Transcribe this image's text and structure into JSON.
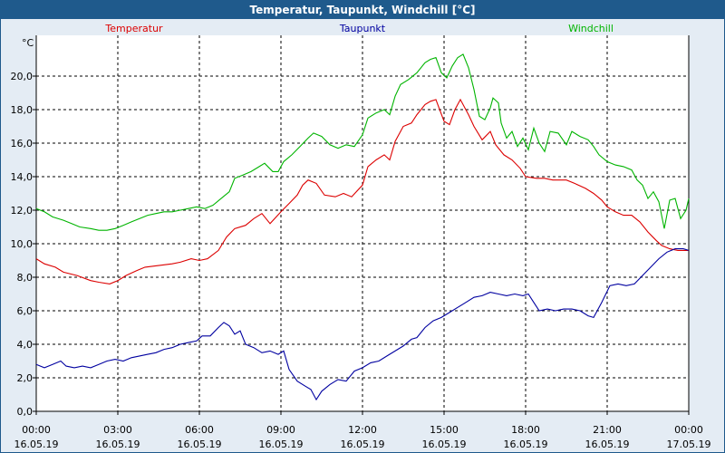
{
  "window": {
    "title": "Temperatur, Taupunkt, Windchill [°C]"
  },
  "chart_data": {
    "type": "line",
    "title": "Temperatur, Taupunkt, Windchill [°C]",
    "ylabel": "°C",
    "xlabel": "",
    "ylim": [
      0,
      22
    ],
    "xlim": [
      0,
      24
    ],
    "grid": true,
    "legend_placement": "top",
    "y_ticks": [
      "0,0",
      "2,0",
      "4,0",
      "6,0",
      "8,0",
      "10,0",
      "12,0",
      "14,0",
      "16,0",
      "18,0",
      "20,0"
    ],
    "x_ticks": [
      {
        "time": "00:00",
        "date": "16.05.19"
      },
      {
        "time": "03:00",
        "date": "16.05.19"
      },
      {
        "time": "06:00",
        "date": "16.05.19"
      },
      {
        "time": "09:00",
        "date": "16.05.19"
      },
      {
        "time": "12:00",
        "date": "16.05.19"
      },
      {
        "time": "15:00",
        "date": "16.05.19"
      },
      {
        "time": "18:00",
        "date": "16.05.19"
      },
      {
        "time": "21:00",
        "date": "16.05.19"
      },
      {
        "time": "00:00",
        "date": "17.05.19"
      }
    ],
    "series": [
      {
        "name": "Temperatur",
        "color": "#dc0000",
        "points": [
          [
            0.0,
            9.1
          ],
          [
            0.3,
            8.8
          ],
          [
            0.7,
            8.6
          ],
          [
            1.0,
            8.3
          ],
          [
            1.5,
            8.1
          ],
          [
            2.0,
            7.8
          ],
          [
            2.3,
            7.7
          ],
          [
            2.7,
            7.6
          ],
          [
            3.0,
            7.8
          ],
          [
            3.3,
            8.1
          ],
          [
            3.7,
            8.4
          ],
          [
            4.0,
            8.6
          ],
          [
            4.5,
            8.7
          ],
          [
            5.0,
            8.8
          ],
          [
            5.3,
            8.9
          ],
          [
            5.7,
            9.1
          ],
          [
            6.0,
            9.0
          ],
          [
            6.3,
            9.1
          ],
          [
            6.7,
            9.6
          ],
          [
            7.0,
            10.4
          ],
          [
            7.3,
            10.9
          ],
          [
            7.7,
            11.1
          ],
          [
            8.0,
            11.5
          ],
          [
            8.3,
            11.8
          ],
          [
            8.6,
            11.2
          ],
          [
            9.0,
            11.9
          ],
          [
            9.3,
            12.4
          ],
          [
            9.6,
            12.9
          ],
          [
            9.8,
            13.5
          ],
          [
            10.0,
            13.8
          ],
          [
            10.3,
            13.6
          ],
          [
            10.6,
            12.9
          ],
          [
            11.0,
            12.8
          ],
          [
            11.3,
            13.0
          ],
          [
            11.6,
            12.8
          ],
          [
            12.0,
            13.5
          ],
          [
            12.2,
            14.6
          ],
          [
            12.5,
            15.0
          ],
          [
            12.8,
            15.3
          ],
          [
            13.0,
            15.0
          ],
          [
            13.2,
            16.1
          ],
          [
            13.5,
            17.0
          ],
          [
            13.8,
            17.2
          ],
          [
            14.0,
            17.7
          ],
          [
            14.3,
            18.3
          ],
          [
            14.5,
            18.5
          ],
          [
            14.7,
            18.6
          ],
          [
            15.0,
            17.3
          ],
          [
            15.2,
            17.1
          ],
          [
            15.4,
            18.0
          ],
          [
            15.6,
            18.6
          ],
          [
            15.9,
            17.7
          ],
          [
            16.1,
            17.0
          ],
          [
            16.4,
            16.2
          ],
          [
            16.7,
            16.7
          ],
          [
            16.9,
            15.9
          ],
          [
            17.2,
            15.3
          ],
          [
            17.5,
            15.0
          ],
          [
            17.8,
            14.5
          ],
          [
            18.0,
            14.0
          ],
          [
            18.4,
            13.9
          ],
          [
            18.7,
            13.9
          ],
          [
            19.0,
            13.8
          ],
          [
            19.5,
            13.8
          ],
          [
            19.8,
            13.6
          ],
          [
            20.2,
            13.3
          ],
          [
            20.5,
            13.0
          ],
          [
            20.8,
            12.6
          ],
          [
            21.0,
            12.2
          ],
          [
            21.3,
            11.9
          ],
          [
            21.6,
            11.7
          ],
          [
            21.9,
            11.7
          ],
          [
            22.2,
            11.3
          ],
          [
            22.5,
            10.7
          ],
          [
            22.8,
            10.2
          ],
          [
            23.0,
            9.9
          ],
          [
            23.3,
            9.7
          ],
          [
            23.6,
            9.6
          ],
          [
            24.0,
            9.6
          ]
        ]
      },
      {
        "name": "Taupunkt",
        "color": "#0000a0",
        "points": [
          [
            0.0,
            2.8
          ],
          [
            0.3,
            2.6
          ],
          [
            0.6,
            2.8
          ],
          [
            0.9,
            3.0
          ],
          [
            1.1,
            2.7
          ],
          [
            1.4,
            2.6
          ],
          [
            1.7,
            2.7
          ],
          [
            2.0,
            2.6
          ],
          [
            2.3,
            2.8
          ],
          [
            2.6,
            3.0
          ],
          [
            2.9,
            3.1
          ],
          [
            3.2,
            3.0
          ],
          [
            3.5,
            3.2
          ],
          [
            3.8,
            3.3
          ],
          [
            4.1,
            3.4
          ],
          [
            4.4,
            3.5
          ],
          [
            4.7,
            3.7
          ],
          [
            5.0,
            3.8
          ],
          [
            5.3,
            4.0
          ],
          [
            5.6,
            4.1
          ],
          [
            5.9,
            4.2
          ],
          [
            6.1,
            4.5
          ],
          [
            6.4,
            4.5
          ],
          [
            6.7,
            5.0
          ],
          [
            6.9,
            5.3
          ],
          [
            7.1,
            5.1
          ],
          [
            7.3,
            4.6
          ],
          [
            7.5,
            4.8
          ],
          [
            7.7,
            4.0
          ],
          [
            8.0,
            3.8
          ],
          [
            8.3,
            3.5
          ],
          [
            8.6,
            3.6
          ],
          [
            8.9,
            3.4
          ],
          [
            9.1,
            3.6
          ],
          [
            9.3,
            2.5
          ],
          [
            9.6,
            1.8
          ],
          [
            9.9,
            1.5
          ],
          [
            10.1,
            1.3
          ],
          [
            10.3,
            0.7
          ],
          [
            10.5,
            1.2
          ],
          [
            10.8,
            1.6
          ],
          [
            11.1,
            1.9
          ],
          [
            11.4,
            1.8
          ],
          [
            11.7,
            2.4
          ],
          [
            12.0,
            2.6
          ],
          [
            12.3,
            2.9
          ],
          [
            12.6,
            3.0
          ],
          [
            12.9,
            3.3
          ],
          [
            13.2,
            3.6
          ],
          [
            13.5,
            3.9
          ],
          [
            13.8,
            4.3
          ],
          [
            14.0,
            4.4
          ],
          [
            14.3,
            5.0
          ],
          [
            14.6,
            5.4
          ],
          [
            14.9,
            5.6
          ],
          [
            15.2,
            5.9
          ],
          [
            15.5,
            6.2
          ],
          [
            15.8,
            6.5
          ],
          [
            16.1,
            6.8
          ],
          [
            16.4,
            6.9
          ],
          [
            16.7,
            7.1
          ],
          [
            17.0,
            7.0
          ],
          [
            17.3,
            6.9
          ],
          [
            17.6,
            7.0
          ],
          [
            17.9,
            6.9
          ],
          [
            18.1,
            7.0
          ],
          [
            18.3,
            6.5
          ],
          [
            18.5,
            6.0
          ],
          [
            18.8,
            6.1
          ],
          [
            19.1,
            6.0
          ],
          [
            19.4,
            6.1
          ],
          [
            19.7,
            6.1
          ],
          [
            20.0,
            6.0
          ],
          [
            20.3,
            5.7
          ],
          [
            20.5,
            5.6
          ],
          [
            20.8,
            6.5
          ],
          [
            21.1,
            7.5
          ],
          [
            21.4,
            7.6
          ],
          [
            21.7,
            7.5
          ],
          [
            22.0,
            7.6
          ],
          [
            22.3,
            8.1
          ],
          [
            22.6,
            8.6
          ],
          [
            22.9,
            9.1
          ],
          [
            23.2,
            9.5
          ],
          [
            23.5,
            9.7
          ],
          [
            23.8,
            9.7
          ],
          [
            24.0,
            9.6
          ]
        ]
      },
      {
        "name": "Windchill",
        "color": "#00b400",
        "points": [
          [
            0.0,
            12.1
          ],
          [
            0.3,
            11.9
          ],
          [
            0.6,
            11.6
          ],
          [
            1.0,
            11.4
          ],
          [
            1.3,
            11.2
          ],
          [
            1.6,
            11.0
          ],
          [
            2.0,
            10.9
          ],
          [
            2.3,
            10.8
          ],
          [
            2.6,
            10.8
          ],
          [
            2.9,
            10.9
          ],
          [
            3.2,
            11.1
          ],
          [
            3.5,
            11.3
          ],
          [
            3.8,
            11.5
          ],
          [
            4.1,
            11.7
          ],
          [
            4.4,
            11.8
          ],
          [
            4.7,
            11.9
          ],
          [
            5.0,
            11.9
          ],
          [
            5.3,
            12.0
          ],
          [
            5.6,
            12.1
          ],
          [
            5.9,
            12.2
          ],
          [
            6.2,
            12.1
          ],
          [
            6.5,
            12.3
          ],
          [
            6.8,
            12.7
          ],
          [
            7.1,
            13.1
          ],
          [
            7.3,
            13.9
          ],
          [
            7.6,
            14.1
          ],
          [
            7.9,
            14.3
          ],
          [
            8.2,
            14.6
          ],
          [
            8.4,
            14.8
          ],
          [
            8.7,
            14.3
          ],
          [
            8.9,
            14.3
          ],
          [
            9.1,
            14.9
          ],
          [
            9.4,
            15.3
          ],
          [
            9.7,
            15.8
          ],
          [
            10.0,
            16.3
          ],
          [
            10.2,
            16.6
          ],
          [
            10.5,
            16.4
          ],
          [
            10.8,
            15.9
          ],
          [
            11.1,
            15.7
          ],
          [
            11.4,
            15.9
          ],
          [
            11.7,
            15.8
          ],
          [
            12.0,
            16.5
          ],
          [
            12.2,
            17.5
          ],
          [
            12.5,
            17.8
          ],
          [
            12.8,
            18.0
          ],
          [
            13.0,
            17.7
          ],
          [
            13.2,
            18.8
          ],
          [
            13.4,
            19.5
          ],
          [
            13.7,
            19.8
          ],
          [
            14.0,
            20.2
          ],
          [
            14.3,
            20.8
          ],
          [
            14.5,
            21.0
          ],
          [
            14.7,
            21.1
          ],
          [
            14.9,
            20.2
          ],
          [
            15.1,
            19.9
          ],
          [
            15.3,
            20.6
          ],
          [
            15.5,
            21.1
          ],
          [
            15.7,
            21.3
          ],
          [
            15.9,
            20.5
          ],
          [
            16.1,
            19.2
          ],
          [
            16.3,
            17.6
          ],
          [
            16.5,
            17.4
          ],
          [
            16.7,
            18.1
          ],
          [
            16.8,
            18.7
          ],
          [
            17.0,
            18.4
          ],
          [
            17.1,
            17.2
          ],
          [
            17.3,
            16.3
          ],
          [
            17.5,
            16.7
          ],
          [
            17.7,
            15.8
          ],
          [
            17.9,
            16.3
          ],
          [
            18.1,
            15.6
          ],
          [
            18.3,
            16.9
          ],
          [
            18.5,
            16.0
          ],
          [
            18.7,
            15.5
          ],
          [
            18.9,
            16.7
          ],
          [
            19.2,
            16.6
          ],
          [
            19.5,
            15.9
          ],
          [
            19.7,
            16.7
          ],
          [
            20.0,
            16.4
          ],
          [
            20.3,
            16.2
          ],
          [
            20.5,
            15.8
          ],
          [
            20.7,
            15.3
          ],
          [
            21.0,
            14.9
          ],
          [
            21.3,
            14.7
          ],
          [
            21.6,
            14.6
          ],
          [
            21.9,
            14.4
          ],
          [
            22.1,
            13.8
          ],
          [
            22.3,
            13.5
          ],
          [
            22.5,
            12.7
          ],
          [
            22.7,
            13.1
          ],
          [
            22.9,
            12.5
          ],
          [
            23.1,
            10.9
          ],
          [
            23.3,
            12.6
          ],
          [
            23.5,
            12.7
          ],
          [
            23.7,
            11.5
          ],
          [
            23.9,
            12.0
          ],
          [
            24.0,
            12.7
          ]
        ]
      }
    ]
  }
}
